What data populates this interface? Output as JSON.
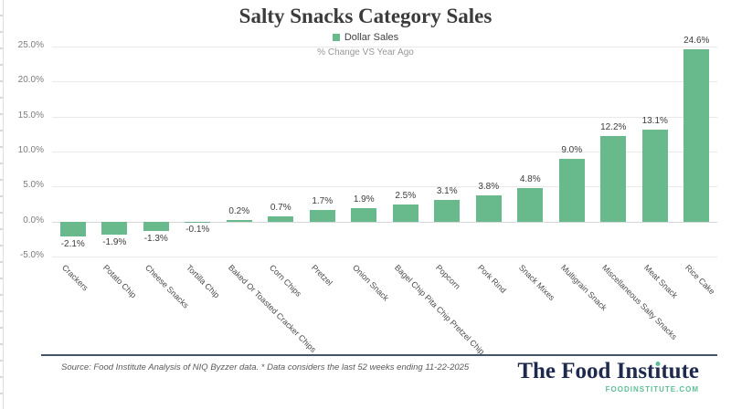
{
  "colors": {
    "bar_green": "#68b98c",
    "navy": "#1e2a4d",
    "url_green": "#5ebf94",
    "rule": "#44546a"
  },
  "chart_data": {
    "type": "bar",
    "title": "Salty Snacks Category Sales",
    "legend": "Dollar Sales",
    "subtitle": "% Change VS Year Ago",
    "categories": [
      "Crackers",
      "Potato Chip",
      "Cheese Snacks",
      "Tortilla Chip",
      "Baked Or Toasted Cracker Chips",
      "Corn Chips",
      "Pretzel",
      "Onion Snack",
      "Bagel Chip Pita Chip Pretzel Chip",
      "Popcorn",
      "Pork Rind",
      "Snack Mixes",
      "Multigrain Snack",
      "Miscellaneous Salty Snacks",
      "Meat Snack",
      "Rice Cake"
    ],
    "values": [
      -2.1,
      -1.9,
      -1.3,
      -0.1,
      0.2,
      0.7,
      1.7,
      1.9,
      2.5,
      3.1,
      3.8,
      4.8,
      9.0,
      12.2,
      13.1,
      24.6
    ],
    "value_labels": [
      "-2.1%",
      "-1.9%",
      "-1.3%",
      "-0.1%",
      "0.2%",
      "0.7%",
      "1.7%",
      "1.9%",
      "2.5%",
      "3.1%",
      "3.8%",
      "4.8%",
      "9.0%",
      "12.2%",
      "13.1%",
      "24.6%"
    ],
    "ylabel": "",
    "xlabel": "",
    "ylim": [
      -5,
      25
    ],
    "grid": true,
    "legend_position": "top",
    "yticks": [
      {
        "v": 25,
        "label": "25.0%"
      },
      {
        "v": 20,
        "label": "20.0%"
      },
      {
        "v": 15,
        "label": "15.0%"
      },
      {
        "v": 10,
        "label": "10.0%"
      },
      {
        "v": 5,
        "label": "5.0%"
      },
      {
        "v": 0,
        "label": "0.0%"
      },
      {
        "v": -5,
        "label": "-5.0%"
      }
    ]
  },
  "footer": {
    "source": "Source: Food Institute Analysis of NIQ Byzzer data. * Data considers the last 52 weeks ending 11-22-2025",
    "logo_pre": "The Food Inst",
    "logo_i": "ı",
    "logo_post": "tute",
    "logo_url": "FOODINSTITUTE.COM"
  }
}
